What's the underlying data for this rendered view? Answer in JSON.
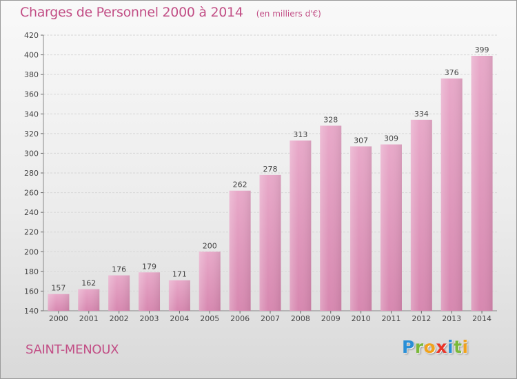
{
  "header": {
    "title": "Charges de Personnel 2000 à 2014",
    "subtitle": "(en milliers d'€)"
  },
  "commune": "SAINT-MENOUX",
  "logo": {
    "text": "Proxiti",
    "letters": [
      {
        "char": "P",
        "color": "#2a8fd6"
      },
      {
        "char": "r",
        "color": "#7ab83a"
      },
      {
        "char": "o",
        "color": "#f0a21c"
      },
      {
        "char": "x",
        "color": "#e8352a"
      },
      {
        "char": "i",
        "color": "#2a8fd6"
      },
      {
        "char": "t",
        "color": "#7ab83a"
      },
      {
        "char": "i",
        "color": "#f0a21c"
      }
    ]
  },
  "chart_data": {
    "type": "bar",
    "categories": [
      "2000",
      "2001",
      "2002",
      "2003",
      "2004",
      "2005",
      "2006",
      "2007",
      "2008",
      "2009",
      "2010",
      "2011",
      "2012",
      "2013",
      "2014"
    ],
    "values": [
      157,
      162,
      176,
      179,
      171,
      200,
      262,
      278,
      313,
      328,
      307,
      309,
      334,
      376,
      399
    ],
    "ylim": [
      140,
      420
    ],
    "yticks": [
      140,
      160,
      180,
      200,
      220,
      240,
      260,
      280,
      300,
      320,
      340,
      360,
      380,
      400,
      420
    ],
    "grid": true,
    "bar_color": "#d788b0",
    "bar_color_light": "#e8a9c9"
  }
}
